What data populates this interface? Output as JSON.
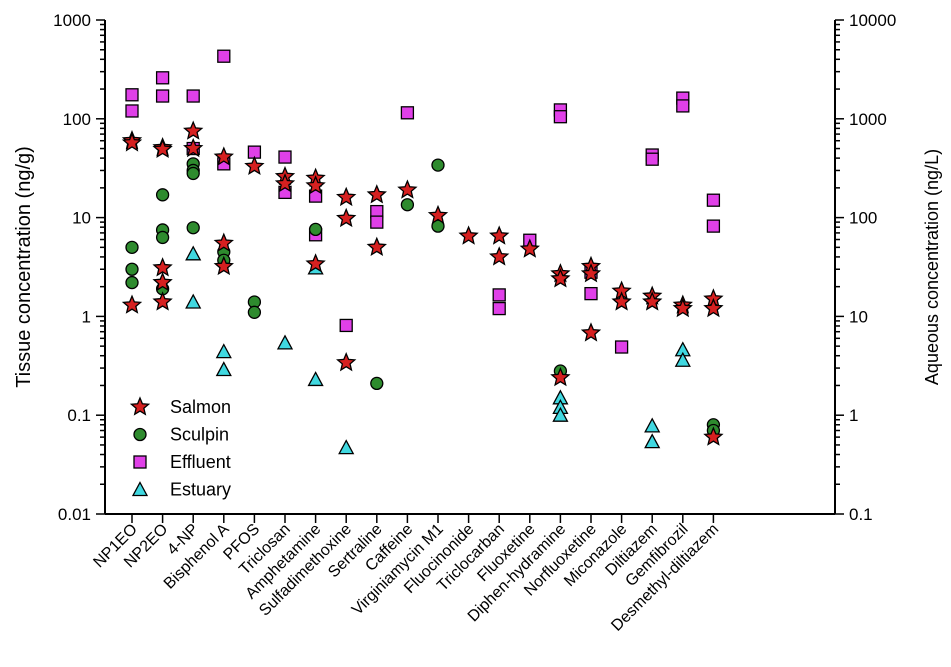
{
  "chart_data": {
    "type": "scatter",
    "title": "",
    "ylabel": "Tissue concentration (ng/g)",
    "ylabel_right": "Aqueous concentration (ng/L)",
    "yscale": "log",
    "ylim": [
      0.01,
      1000
    ],
    "ylim_right": [
      0.1,
      10000
    ],
    "yticks": [
      "0.01",
      "0.1",
      "1",
      "10",
      "100",
      "1000"
    ],
    "yticks_right": [
      "0.1",
      "1",
      "10",
      "100",
      "1000",
      "10000"
    ],
    "categories": [
      "NP1EO",
      "NP2EO",
      "4-NP",
      "Bisphenol A",
      "PFOS",
      "Triclosan",
      "Amphetamine",
      "Sulfadimethoxine",
      "Sertraline",
      "Caffeine",
      "Virginiamycin M1",
      "Fluocinonide",
      "Triclocarban",
      "Fluoxetine",
      "Diphen-hydramine",
      "Norfluoxetine",
      "Miconazole",
      "Diltiazem",
      "Gemfibrozil",
      "Desmethyl-diltiazem"
    ],
    "legend_position": "lower-left",
    "series": [
      {
        "name": "Salmon",
        "axis": "left",
        "marker": "star",
        "color": "#d62020",
        "points": [
          {
            "cat": "NP1EO",
            "values": [
              60,
              57,
              1.3
            ]
          },
          {
            "cat": "NP2EO",
            "values": [
              51,
              49,
              3.1,
              2.2,
              1.4
            ]
          },
          {
            "cat": "4-NP",
            "values": [
              75,
              50
            ]
          },
          {
            "cat": "Bisphenol A",
            "values": [
              41,
              5.5,
              3.2
            ]
          },
          {
            "cat": "PFOS",
            "values": [
              33
            ]
          },
          {
            "cat": "Triclosan",
            "values": [
              26,
              22
            ]
          },
          {
            "cat": "Amphetamine",
            "values": [
              25,
              21,
              3.4
            ]
          },
          {
            "cat": "Sulfadimethoxine",
            "values": [
              16,
              9.8,
              0.34
            ]
          },
          {
            "cat": "Sertraline",
            "values": [
              17,
              5
            ]
          },
          {
            "cat": "Caffeine",
            "values": [
              19
            ]
          },
          {
            "cat": "Virginiamycin M1",
            "values": [
              10.5
            ]
          },
          {
            "cat": "Fluocinonide",
            "values": [
              6.5
            ]
          },
          {
            "cat": "Triclocarban",
            "values": [
              6.5,
              4
            ]
          },
          {
            "cat": "Fluoxetine",
            "values": [
              4.8
            ]
          },
          {
            "cat": "Diphen-hydramine",
            "values": [
              2.7,
              2.4,
              0.24
            ]
          },
          {
            "cat": "Norfluoxetine",
            "values": [
              3.2,
              2.7,
              0.68
            ]
          },
          {
            "cat": "Miconazole",
            "values": [
              1.8,
              1.4
            ]
          },
          {
            "cat": "Diltiazem",
            "values": [
              1.6,
              1.4
            ]
          },
          {
            "cat": "Gemfibrozil",
            "values": [
              1.3,
              1.2
            ]
          },
          {
            "cat": "Desmethyl-diltiazem",
            "values": [
              1.5,
              1.2,
              0.06
            ]
          }
        ]
      },
      {
        "name": "Sculpin",
        "axis": "left",
        "marker": "circle",
        "color": "#2e8b2e",
        "points": [
          {
            "cat": "NP1EO",
            "values": [
              5,
              3,
              2.2
            ]
          },
          {
            "cat": "NP2EO",
            "values": [
              17,
              7.5,
              6.3,
              1.9
            ]
          },
          {
            "cat": "4-NP",
            "values": [
              35,
              30,
              28,
              7.9
            ]
          },
          {
            "cat": "Bisphenol A",
            "values": [
              4.5,
              3.7
            ]
          },
          {
            "cat": "PFOS",
            "values": [
              1.4,
              1.1
            ]
          },
          {
            "cat": "Amphetamine",
            "values": [
              7.6
            ]
          },
          {
            "cat": "Sertraline",
            "values": [
              0.21
            ]
          },
          {
            "cat": "Caffeine",
            "values": [
              13.5
            ]
          },
          {
            "cat": "Virginiamycin M1",
            "values": [
              34,
              8.2
            ]
          },
          {
            "cat": "Diphen-hydramine",
            "values": [
              0.28
            ]
          },
          {
            "cat": "Desmethyl-diltiazem",
            "values": [
              0.08,
              0.07
            ]
          }
        ]
      },
      {
        "name": "Effluent",
        "axis": "right",
        "marker": "square",
        "color": "#e040e8",
        "points": [
          {
            "cat": "NP1EO",
            "values": [
              1750,
              1200
            ]
          },
          {
            "cat": "NP2EO",
            "values": [
              2600,
              1700
            ]
          },
          {
            "cat": "4-NP",
            "values": [
              1700,
              500
            ]
          },
          {
            "cat": "Bisphenol A",
            "values": [
              4300,
              350
            ]
          },
          {
            "cat": "PFOS",
            "values": [
              460
            ]
          },
          {
            "cat": "Triclosan",
            "values": [
              410,
              180
            ]
          },
          {
            "cat": "Amphetamine",
            "values": [
              165,
              67
            ]
          },
          {
            "cat": "Sulfadimethoxine",
            "values": [
              8.1
            ]
          },
          {
            "cat": "Sertraline",
            "values": [
              115,
              90
            ]
          },
          {
            "cat": "Caffeine",
            "values": [
              1150
            ]
          },
          {
            "cat": "Triclocarban",
            "values": [
              16.5,
              12
            ]
          },
          {
            "cat": "Fluoxetine",
            "values": [
              59
            ]
          },
          {
            "cat": "Diphen-hydramine",
            "values": [
              1230,
              1050
            ]
          },
          {
            "cat": "Norfluoxetine",
            "values": [
              28,
              17
            ]
          },
          {
            "cat": "Miconazole",
            "values": [
              4.9
            ]
          },
          {
            "cat": "Diltiazem",
            "values": [
              430,
              390
            ]
          },
          {
            "cat": "Gemfibrozil",
            "values": [
              1620,
              1350
            ]
          },
          {
            "cat": "Desmethyl-diltiazem",
            "values": [
              150,
              82
            ]
          }
        ]
      },
      {
        "name": "Estuary",
        "axis": "right",
        "marker": "triangle",
        "color": "#40d8e0",
        "points": [
          {
            "cat": "4-NP",
            "values": [
              43,
              14
            ]
          },
          {
            "cat": "Bisphenol A",
            "values": [
              4.4,
              2.9
            ]
          },
          {
            "cat": "Triclosan",
            "values": [
              5.4
            ]
          },
          {
            "cat": "Amphetamine",
            "values": [
              31,
              2.3
            ]
          },
          {
            "cat": "Sulfadimethoxine",
            "values": [
              0.47
            ]
          },
          {
            "cat": "Diphen-hydramine",
            "values": [
              1.5,
              1.2,
              1.0
            ]
          },
          {
            "cat": "Diltiazem",
            "values": [
              0.78,
              0.54
            ]
          },
          {
            "cat": "Gemfibrozil",
            "values": [
              4.6,
              3.6
            ]
          }
        ]
      }
    ]
  }
}
